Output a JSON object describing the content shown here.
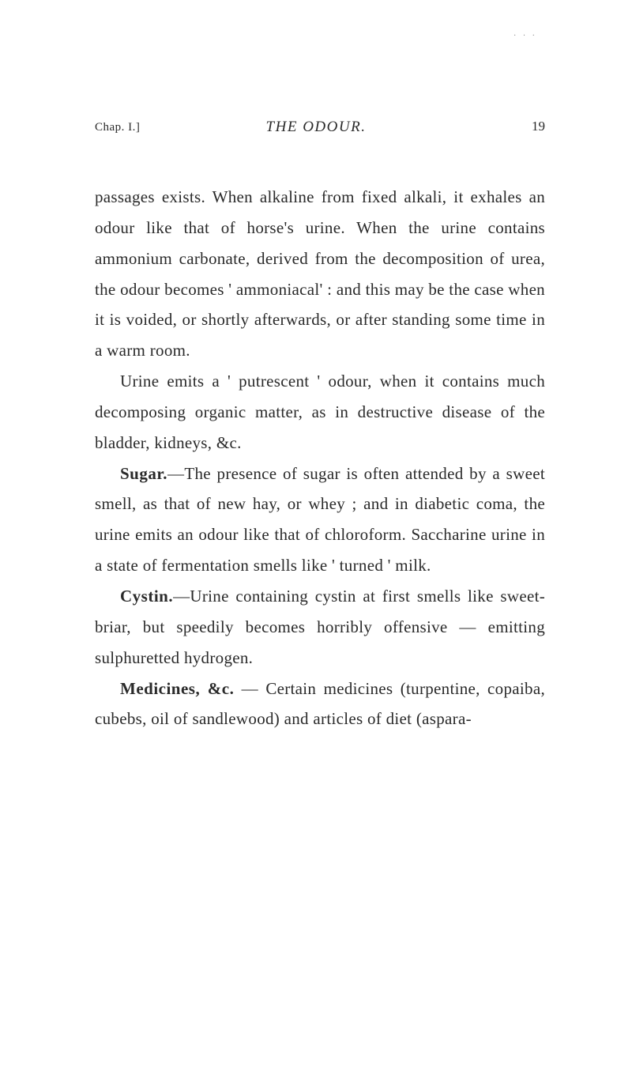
{
  "header": {
    "chapter_label": "Chap. I.]",
    "title": "THE ODOUR.",
    "page_number": "19"
  },
  "paragraphs": {
    "p1": "passages exists. When alkaline from fixed alkali, it exhales an odour like that of horse's urine. When the urine con­tains ammonium carbonate, derived from the decomposition of urea, the odour becomes ' ammoniacal' : and this may be the case when it is voided, or shortly afterwards, or after standing some time in a warm room.",
    "p2": "Urine emits a ' putrescent ' odour, when it contains much decomposing organic matter, as in destructive disease of the bladder, kidneys, &c.",
    "p3_label": "Sugar.",
    "p3": "—The presence of sugar is often attended by a sweet smell, as that of new hay, or whey ; and in diabetic coma, the urine emits an odour like that of chloroform. Saccharine urine in a state of fermentation smells like ' turned ' milk.",
    "p4_label": "Cystin.",
    "p4": "—Urine containing cystin at first smells like sweet-briar, but speedily becomes horribly offensive — emitting sulphuretted hydrogen.",
    "p5_label": "Medicines, &c.",
    "p5": " — Certain medicines (turpentine, copaiba, cubebs, oil of sandlewood) and articles of diet (aspara-"
  },
  "styling": {
    "background_color": "#ffffff",
    "text_color": "#2a2a2a",
    "body_fontsize": 21,
    "line_height": 1.85,
    "title_fontsize": 19,
    "header_fontsize": 15
  }
}
